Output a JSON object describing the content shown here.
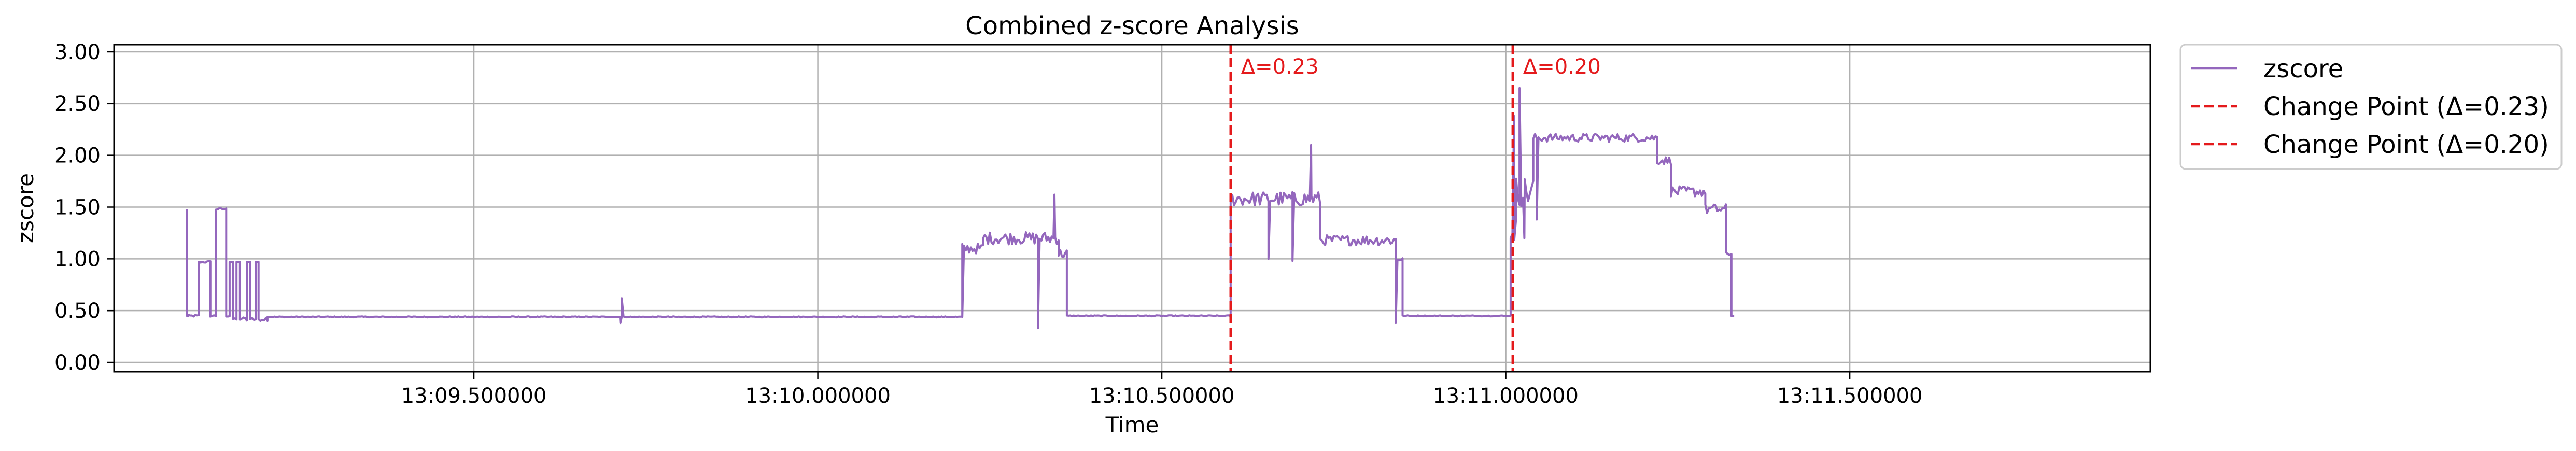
{
  "chart_data": {
    "type": "line",
    "title": "Combined z-score Analysis",
    "xlabel": "Time",
    "ylabel": "zscore",
    "x_unit": "seconds past 13:09",
    "x_ticks": [
      {
        "value": 30.0,
        "label": "13:09.500000"
      },
      {
        "value": 30.5,
        "label": "13:10.000000"
      },
      {
        "value": 31.0,
        "label": "13:10.500000"
      },
      {
        "value": 31.5,
        "label": "13:11.000000"
      },
      {
        "value": 32.0,
        "label": "13:11.500000"
      }
    ],
    "xlim": [
      29.477,
      32.437
    ],
    "ylim": [
      -0.09,
      3.07
    ],
    "y_ticks": [
      0.0,
      0.5,
      1.0,
      1.5,
      2.0,
      2.5,
      3.0
    ],
    "y_tick_labels": [
      "0.00",
      "0.50",
      "1.00",
      "1.50",
      "2.00",
      "2.50",
      "3.00"
    ],
    "grid": true,
    "legend_position": "outside-right-top",
    "colors": {
      "series": "#9467bd",
      "change_point": "#e41a1c"
    },
    "series": [
      {
        "name": "zscore",
        "segments": [
          {
            "x0": 29.583,
            "x1": 29.585,
            "y": 0.45,
            "noise": 0.0
          },
          {
            "x0": 29.585,
            "x1": 29.6,
            "y": 0.45,
            "noise": 0.01
          },
          {
            "x0": 29.6,
            "x1": 29.603,
            "y": 0.97,
            "noise": 0.0
          },
          {
            "x0": 29.603,
            "x1": 29.617,
            "y": 0.97,
            "noise": 0.01
          },
          {
            "x0": 29.617,
            "x1": 29.625,
            "y": 0.45,
            "noise": 0.01
          },
          {
            "x0": 29.625,
            "x1": 29.64,
            "y": 1.48,
            "noise": 0.01
          },
          {
            "x0": 29.64,
            "x1": 29.645,
            "y": 0.45,
            "noise": 0.01
          },
          {
            "x0": 29.645,
            "x1": 29.65,
            "y": 0.97,
            "noise": 0.0
          },
          {
            "x0": 29.65,
            "x1": 29.655,
            "y": 0.42,
            "noise": 0.01
          },
          {
            "x0": 29.655,
            "x1": 29.66,
            "y": 0.97,
            "noise": 0.0
          },
          {
            "x0": 29.66,
            "x1": 29.67,
            "y": 0.42,
            "noise": 0.02
          },
          {
            "x0": 29.67,
            "x1": 29.675,
            "y": 0.97,
            "noise": 0.0
          },
          {
            "x0": 29.675,
            "x1": 29.683,
            "y": 0.42,
            "noise": 0.02
          },
          {
            "x0": 29.683,
            "x1": 29.687,
            "y": 0.97,
            "noise": 0.0
          },
          {
            "x0": 29.687,
            "x1": 29.7,
            "y": 0.42,
            "noise": 0.02
          },
          {
            "x0": 29.7,
            "x1": 30.71,
            "y": 0.44,
            "noise": 0.005
          },
          {
            "x0": 30.71,
            "x1": 30.74,
            "y": 1.1,
            "noise": 0.05
          },
          {
            "x0": 30.74,
            "x1": 30.85,
            "y": 1.2,
            "noise": 0.06
          },
          {
            "x0": 30.85,
            "x1": 30.862,
            "y": 1.05,
            "noise": 0.05
          },
          {
            "x0": 30.862,
            "x1": 31.1,
            "y": 0.45,
            "noise": 0.005
          },
          {
            "x0": 31.1,
            "x1": 31.23,
            "y": 1.58,
            "noise": 0.07
          },
          {
            "x0": 31.23,
            "x1": 31.34,
            "y": 1.18,
            "noise": 0.05
          },
          {
            "x0": 31.34,
            "x1": 31.35,
            "y": 1.0,
            "noise": 0.03
          },
          {
            "x0": 31.35,
            "x1": 31.507,
            "y": 0.45,
            "noise": 0.005
          },
          {
            "x0": 31.507,
            "x1": 31.515,
            "y": 1.3,
            "noise": 0.15
          },
          {
            "x0": 31.515,
            "x1": 31.54,
            "y": 1.65,
            "noise": 0.15
          },
          {
            "x0": 31.54,
            "x1": 31.72,
            "y": 2.17,
            "noise": 0.04
          },
          {
            "x0": 31.72,
            "x1": 31.74,
            "y": 1.95,
            "noise": 0.04
          },
          {
            "x0": 31.74,
            "x1": 31.79,
            "y": 1.65,
            "noise": 0.05
          },
          {
            "x0": 31.79,
            "x1": 31.82,
            "y": 1.48,
            "noise": 0.05
          },
          {
            "x0": 31.82,
            "x1": 31.828,
            "y": 1.05,
            "noise": 0.02
          },
          {
            "x0": 31.828,
            "x1": 31.832,
            "y": 0.45,
            "noise": 0.0
          }
        ],
        "spikes": [
          {
            "x": 30.71,
            "y": 0.44
          },
          {
            "x": 30.844,
            "y": 1.62
          },
          {
            "x": 30.82,
            "y": 0.33
          },
          {
            "x": 31.217,
            "y": 2.1
          },
          {
            "x": 31.155,
            "y": 1.0
          },
          {
            "x": 31.19,
            "y": 0.98
          },
          {
            "x": 31.52,
            "y": 2.65
          },
          {
            "x": 31.512,
            "y": 2.38
          },
          {
            "x": 31.545,
            "y": 1.38
          },
          {
            "x": 31.527,
            "y": 1.2
          },
          {
            "x": 31.34,
            "y": 0.38
          },
          {
            "x": 30.215,
            "y": 0.62
          },
          {
            "x": 30.213,
            "y": 0.38
          }
        ]
      }
    ],
    "change_points": [
      {
        "x": 31.1,
        "label": "Δ=0.23",
        "legend": "Change Point (Δ=0.23)"
      },
      {
        "x": 31.51,
        "label": "Δ=0.20",
        "legend": "Change Point (Δ=0.20)"
      }
    ]
  }
}
